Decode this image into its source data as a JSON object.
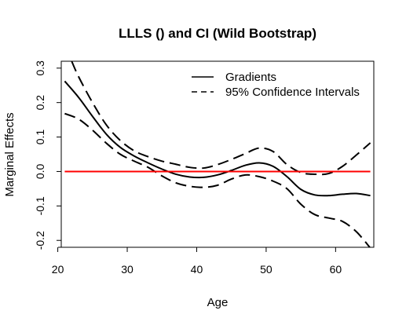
{
  "chart_data": {
    "type": "line",
    "title": "LLLS () and CI (Wild Bootstrap)",
    "xlabel": "Age",
    "ylabel": "Marginal Effects",
    "xlim": [
      20.5,
      65.5
    ],
    "ylim": [
      -0.22,
      0.32
    ],
    "xticks": [
      20,
      30,
      40,
      50,
      60
    ],
    "yticks": [
      -0.2,
      -0.1,
      0.0,
      0.1,
      0.2,
      0.3
    ],
    "ytick_labels": [
      "-0.2",
      "-0.1",
      "0.0",
      "0.1",
      "0.2",
      "0.3"
    ],
    "grid": false,
    "legend_position": "top-right",
    "series": [
      {
        "name": "Gradients",
        "style": "solid",
        "color": "#000000",
        "x": [
          21,
          23,
          25,
          27,
          29,
          31,
          33,
          35,
          37,
          39,
          41,
          43,
          45,
          47,
          49,
          51,
          53,
          55,
          57,
          59,
          61,
          63,
          65
        ],
        "y": [
          0.262,
          0.215,
          0.16,
          0.108,
          0.07,
          0.045,
          0.025,
          0.007,
          -0.008,
          -0.016,
          -0.017,
          -0.01,
          0.003,
          0.018,
          0.025,
          0.015,
          -0.015,
          -0.052,
          -0.068,
          -0.07,
          -0.066,
          -0.064,
          -0.07
        ]
      },
      {
        "name": "95% Confidence Intervals",
        "style": "dashed",
        "color": "#000000",
        "x": [
          22,
          23,
          25,
          27,
          29,
          31,
          33,
          35,
          37,
          39,
          41,
          43,
          45,
          47,
          49,
          51,
          53,
          55,
          57,
          59,
          61,
          63,
          65
        ],
        "y": [
          0.32,
          0.275,
          0.2,
          0.135,
          0.09,
          0.06,
          0.043,
          0.03,
          0.021,
          0.012,
          0.01,
          0.02,
          0.035,
          0.052,
          0.068,
          0.058,
          0.02,
          -0.003,
          -0.008,
          -0.006,
          0.015,
          0.048,
          0.083
        ]
      },
      {
        "name": "",
        "style": "dashed",
        "color": "#000000",
        "x": [
          21,
          23,
          25,
          27,
          29,
          31,
          33,
          35,
          37,
          39,
          41,
          43,
          45,
          47,
          49,
          51,
          53,
          55,
          57,
          59,
          61,
          63,
          65
        ],
        "y": [
          0.168,
          0.152,
          0.12,
          0.082,
          0.05,
          0.03,
          0.012,
          -0.013,
          -0.033,
          -0.043,
          -0.046,
          -0.04,
          -0.022,
          -0.01,
          -0.015,
          -0.028,
          -0.05,
          -0.095,
          -0.125,
          -0.135,
          -0.145,
          -0.175,
          -0.222
        ]
      }
    ],
    "reference_line": {
      "y": 0.0,
      "x_from": 21,
      "x_to": 65,
      "color": "#ff0000"
    },
    "legend": [
      {
        "label": "Gradients",
        "style": "solid"
      },
      {
        "label": "95% Confidence Intervals",
        "style": "dashed"
      }
    ]
  }
}
